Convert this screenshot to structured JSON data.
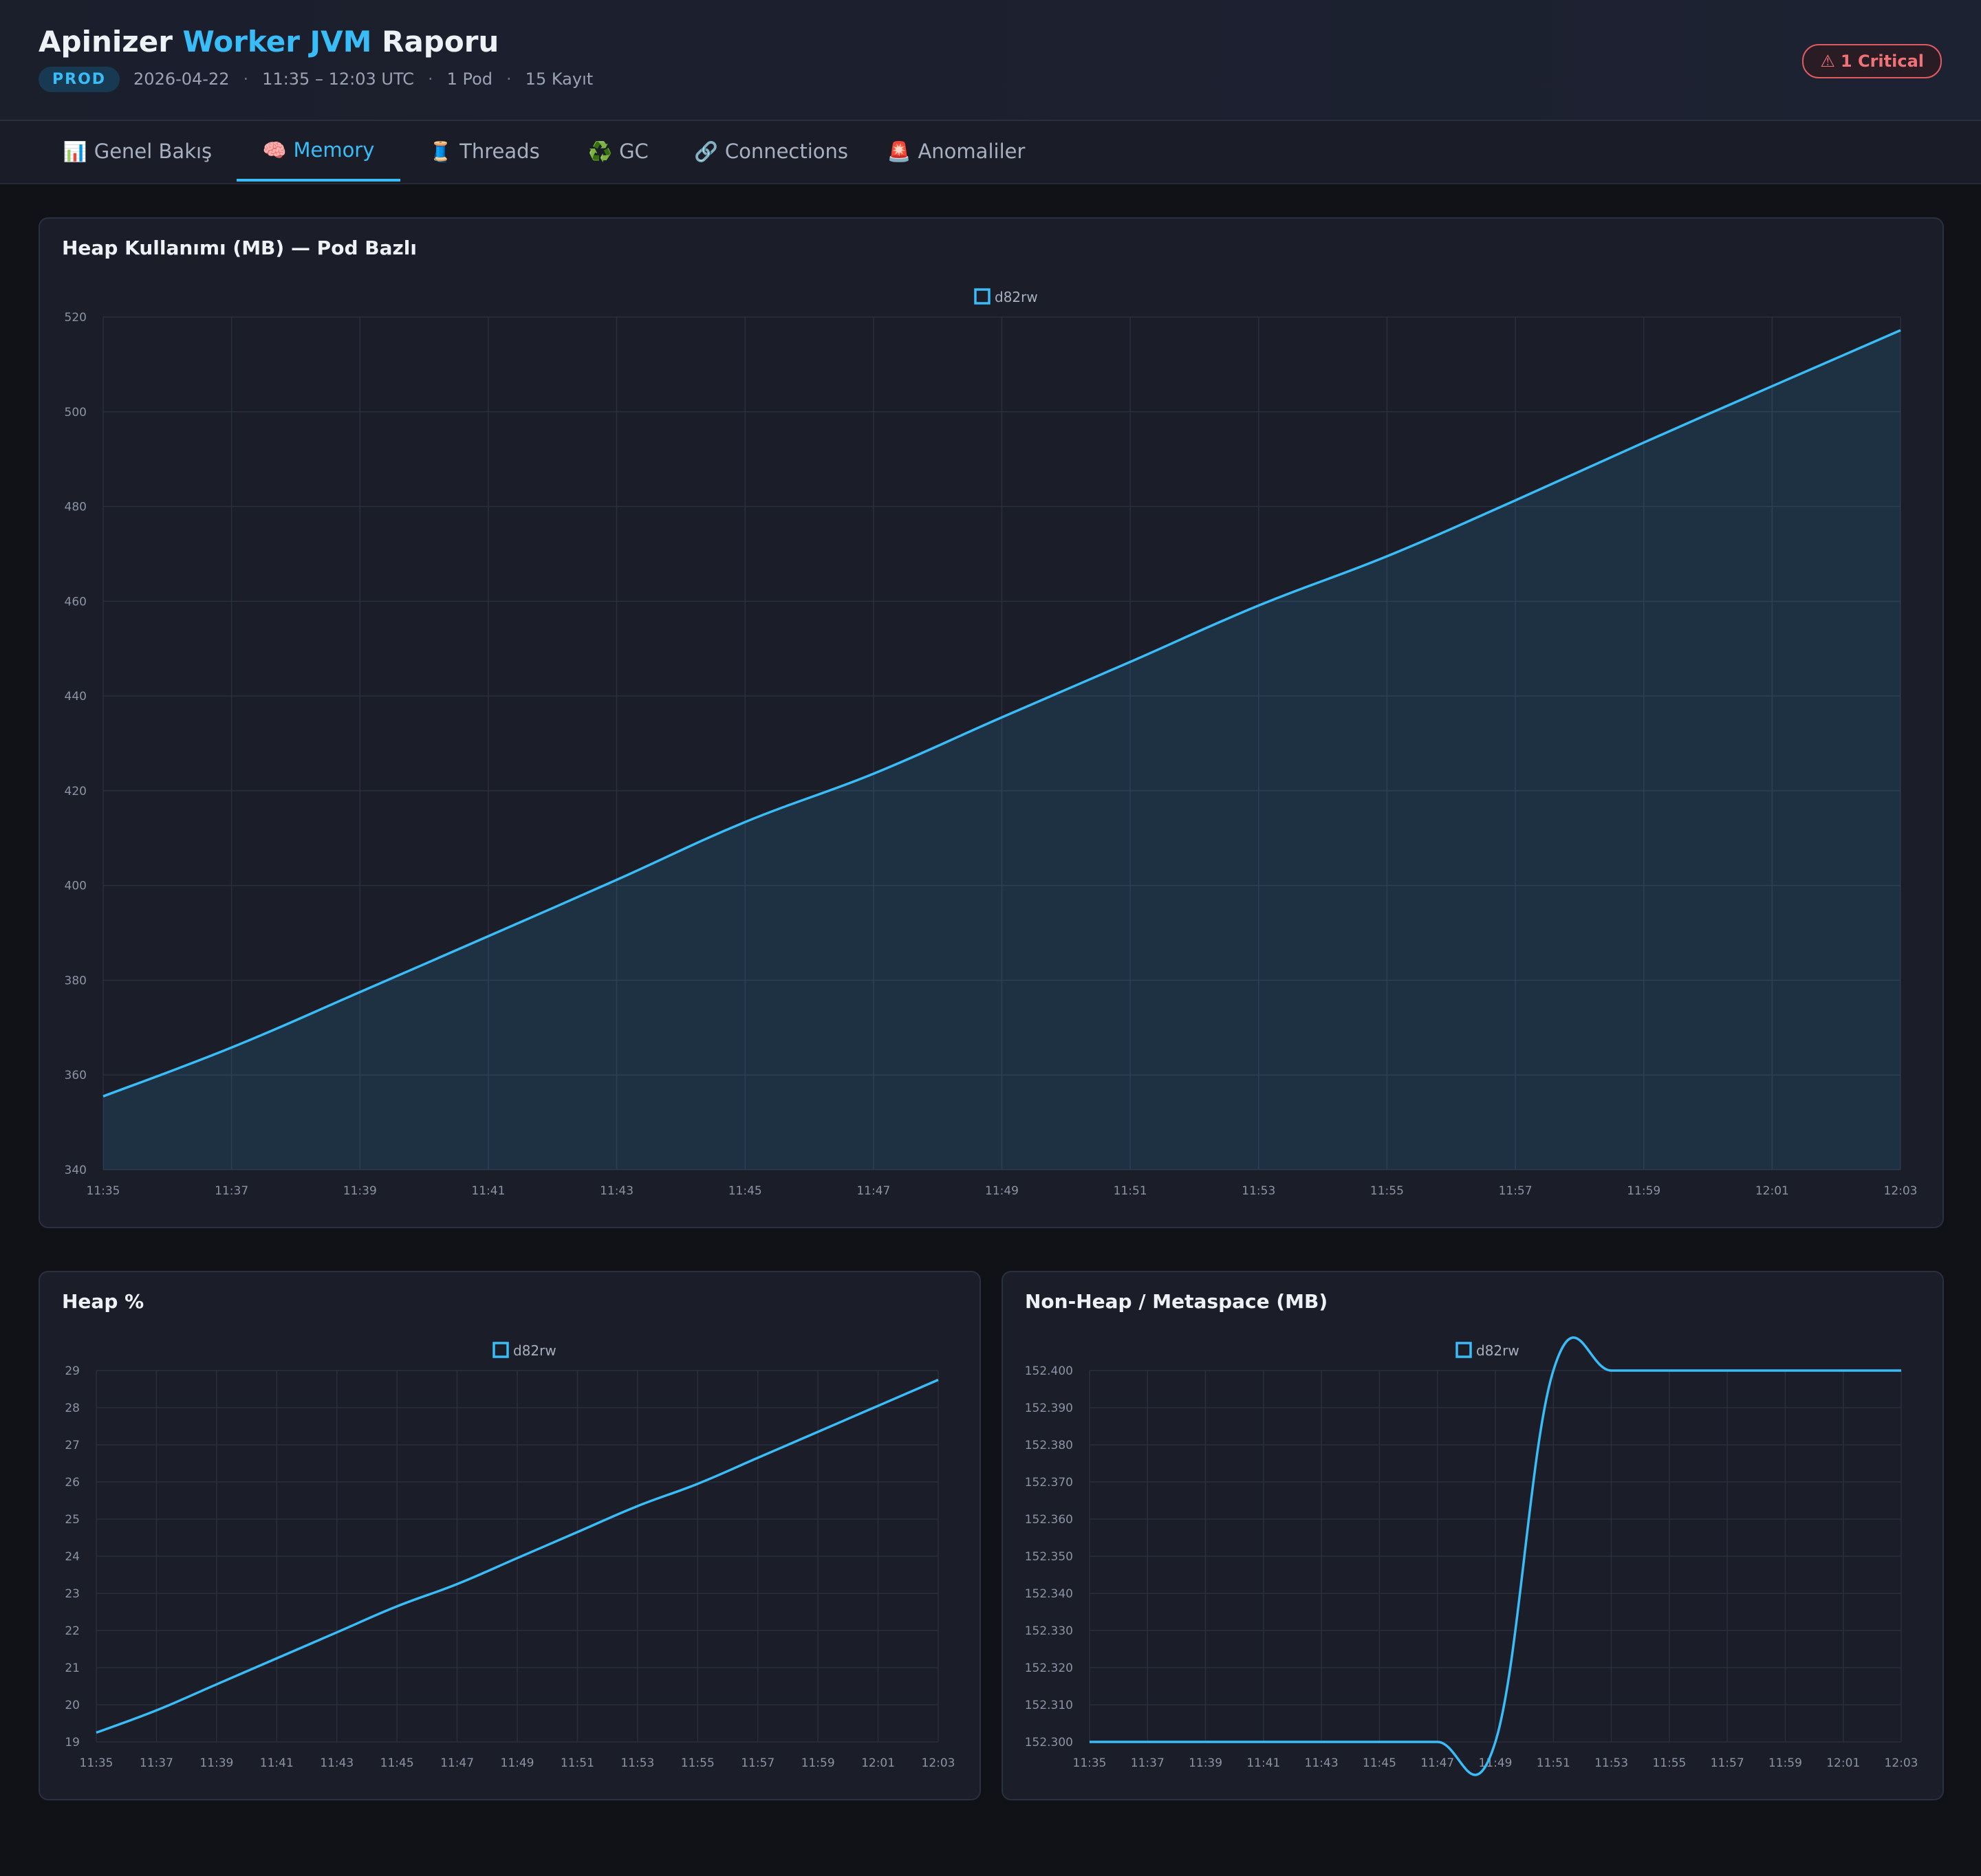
{
  "header": {
    "title_part1": "Apinizer",
    "title_accent": "Worker JVM",
    "title_part2": "Raporu",
    "env": "PROD",
    "date": "2026-04-22",
    "time_range": "11:35 – 12:03 UTC",
    "pods": "1 Pod",
    "records": "15 Kayıt",
    "separator": "·",
    "critical_icon": "⚠",
    "critical_label": "1 Critical"
  },
  "tabs": [
    {
      "icon": "📊",
      "label": "Genel Bakış"
    },
    {
      "icon": "🧠",
      "label": "Memory"
    },
    {
      "icon": "🧵",
      "label": "Threads"
    },
    {
      "icon": "♻️",
      "label": "GC"
    },
    {
      "icon": "🔗",
      "label": "Connections"
    },
    {
      "icon": "🚨",
      "label": "Anomaliler"
    }
  ],
  "active_tab": "Memory",
  "colors": {
    "accent": "#38bdf8",
    "critical": "#f07178",
    "grid": "#2a2f3d"
  },
  "chart_data": [
    {
      "type": "area",
      "title": "Heap Kullanımı (MB) — Pod Bazlı",
      "x": [
        "11:35",
        "11:37",
        "11:39",
        "11:41",
        "11:43",
        "11:45",
        "11:47",
        "11:49",
        "11:51",
        "11:53",
        "11:55",
        "11:57",
        "11:59",
        "12:01",
        "12:03"
      ],
      "series": [
        {
          "name": "d82rw",
          "values": [
            355.5,
            365.8,
            377.5,
            389.3,
            401.2,
            413.4,
            423.6,
            435.5,
            447.2,
            459.1,
            469.5,
            481.3,
            493.5,
            505.4,
            517.2
          ]
        }
      ],
      "yticks": [
        340,
        360,
        380,
        400,
        420,
        440,
        460,
        480,
        500,
        520
      ],
      "ylim": [
        340,
        520
      ],
      "decimals": 0,
      "grid": true,
      "legend": "top-center"
    },
    {
      "type": "line",
      "title": "Heap %",
      "x": [
        "11:35",
        "11:37",
        "11:39",
        "11:41",
        "11:43",
        "11:45",
        "11:47",
        "11:49",
        "11:51",
        "11:53",
        "11:55",
        "11:57",
        "11:59",
        "12:01",
        "12:03"
      ],
      "series": [
        {
          "name": "d82rw",
          "values": [
            19.25,
            19.85,
            20.55,
            21.25,
            21.95,
            22.65,
            23.25,
            23.95,
            24.65,
            25.35,
            25.95,
            26.65,
            27.35,
            28.05,
            28.75
          ]
        }
      ],
      "yticks": [
        19,
        20,
        21,
        22,
        23,
        24,
        25,
        26,
        27,
        28,
        29
      ],
      "ylim": [
        19,
        29
      ],
      "decimals": 0,
      "grid": true,
      "legend": "top-center"
    },
    {
      "type": "line",
      "title": "Non-Heap / Metaspace (MB)",
      "x": [
        "11:35",
        "11:37",
        "11:39",
        "11:41",
        "11:43",
        "11:45",
        "11:47",
        "11:49",
        "11:51",
        "11:53",
        "11:55",
        "11:57",
        "11:59",
        "12:01",
        "12:03"
      ],
      "series": [
        {
          "name": "d82rw",
          "values": [
            152.3,
            152.3,
            152.3,
            152.3,
            152.3,
            152.3,
            152.3,
            152.3,
            152.4,
            152.4,
            152.4,
            152.4,
            152.4,
            152.4,
            152.4
          ]
        }
      ],
      "yticks": [
        152.3,
        152.31,
        152.32,
        152.33,
        152.34,
        152.35,
        152.36,
        152.37,
        152.38,
        152.39,
        152.4
      ],
      "ylim": [
        152.3,
        152.4
      ],
      "decimals": 3,
      "grid": true,
      "legend": "top-center"
    }
  ]
}
